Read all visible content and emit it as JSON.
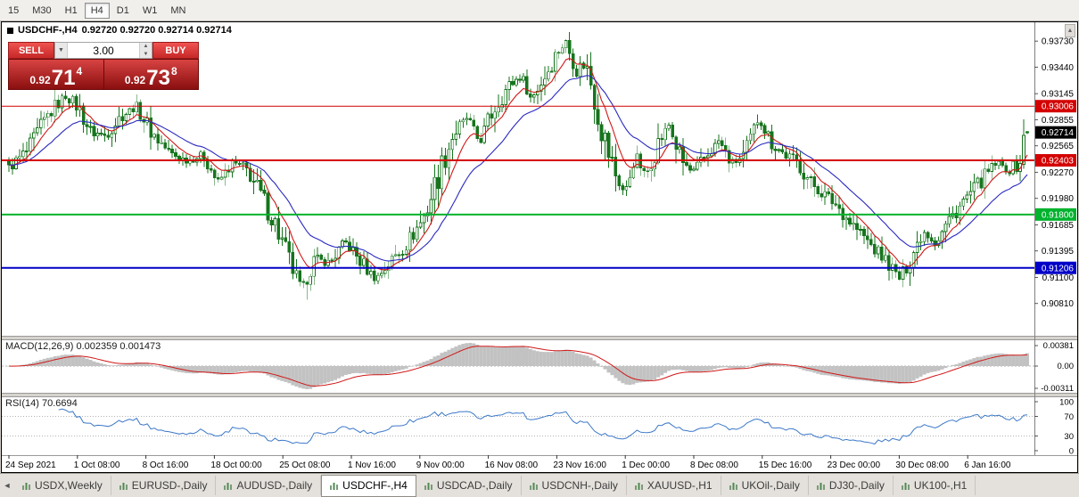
{
  "toolbar": {
    "timeframes": [
      "15",
      "M30",
      "H1",
      "H4",
      "D1",
      "W1",
      "MN"
    ],
    "active": "H4"
  },
  "chart_header": {
    "symbol": "USDCHF-,H4",
    "ohlc_text": "0.92720 0.92720 0.92714 0.92714"
  },
  "trade_panel": {
    "sell_label": "SELL",
    "buy_label": "BUY",
    "volume": "3.00",
    "dropdown_glyph": "▼",
    "spinner_up_glyph": "▲",
    "spinner_down_glyph": "▼",
    "sell_price": {
      "prefix": "0.92",
      "big": "71",
      "sup": "4"
    },
    "buy_price": {
      "prefix": "0.92",
      "big": "73",
      "sup": "8"
    }
  },
  "window": {
    "scroll_up_glyph": "▲"
  },
  "y_axis_labels": [
    "0.93730",
    "0.93440",
    "0.93145",
    "0.92855",
    "0.92565",
    "0.92270",
    "0.91980",
    "0.91685",
    "0.91395",
    "0.91100",
    "0.90810"
  ],
  "x_axis_labels": [
    "24 Sep 2021",
    "1 Oct 08:00",
    "8 Oct 16:00",
    "18 Oct 00:00",
    "25 Oct 08:00",
    "1 Nov 16:00",
    "9 Nov 00:00",
    "16 Nov 08:00",
    "23 Nov 16:00",
    "1 Dec 00:00",
    "8 Dec 08:00",
    "15 Dec 16:00",
    "23 Dec 00:00",
    "30 Dec 08:00",
    "6 Jan 16:00"
  ],
  "macd_panel": {
    "label": "MACD(12,26,9) 0.002359 0.001473",
    "axis_labels": [
      "0.00381",
      "0.00",
      "-0.00311"
    ]
  },
  "rsi_panel": {
    "label": "RSI(14) 70.6694",
    "axis_labels": [
      "100",
      "70",
      "30",
      "0"
    ],
    "guide_levels": [
      70,
      30
    ]
  },
  "tabs": {
    "scroll_left": "◄",
    "items": [
      "USDX,Weekly",
      "EURUSD-,Daily",
      "AUDUSD-,Daily",
      "USDCHF-,H4",
      "USDCAD-,Daily",
      "USDCNH-,Daily",
      "XAUUSD-,H1",
      "UKOil-,Daily",
      "DJ30-,Daily",
      "UK100-,H1"
    ],
    "active_index": 3
  },
  "chart_data": {
    "type": "candlestick",
    "symbol": "USDCHF-",
    "timeframe": "H4",
    "title": "USDCHF-,H4",
    "current_bar": {
      "open": 0.9272,
      "high": 0.9272,
      "low": 0.92714,
      "close": 0.92714
    },
    "current_price_tag": {
      "label": "0.92714",
      "value": 0.92714,
      "color": "#000000"
    },
    "levels": [
      {
        "value": 0.93006,
        "label": "0.93006",
        "color": "#d40000",
        "width": 1
      },
      {
        "value": 0.92403,
        "label": "0.92403",
        "color": "#d40000",
        "width": 2
      },
      {
        "value": 0.918,
        "label": "0.91800",
        "color": "#00b22d",
        "width": 2
      },
      {
        "value": 0.91206,
        "label": "0.91206",
        "color": "#0000c8",
        "width": 2
      }
    ],
    "y_range": {
      "max": 0.9394,
      "min": 0.9045
    },
    "visible_high": 0.9375,
    "visible_low": 0.9085,
    "num_candles": 288,
    "price_anchors": [
      [
        0.0,
        0.9232
      ],
      [
        0.018,
        0.925
      ],
      [
        0.04,
        0.9293
      ],
      [
        0.055,
        0.9312
      ],
      [
        0.068,
        0.93
      ],
      [
        0.08,
        0.9272
      ],
      [
        0.095,
        0.9268
      ],
      [
        0.11,
        0.929
      ],
      [
        0.125,
        0.93
      ],
      [
        0.14,
        0.9272
      ],
      [
        0.158,
        0.9248
      ],
      [
        0.175,
        0.924
      ],
      [
        0.192,
        0.9246
      ],
      [
        0.205,
        0.9215
      ],
      [
        0.22,
        0.9238
      ],
      [
        0.235,
        0.9228
      ],
      [
        0.25,
        0.9196
      ],
      [
        0.262,
        0.9168
      ],
      [
        0.275,
        0.9128
      ],
      [
        0.288,
        0.9096
      ],
      [
        0.3,
        0.913
      ],
      [
        0.315,
        0.9126
      ],
      [
        0.33,
        0.915
      ],
      [
        0.345,
        0.9128
      ],
      [
        0.36,
        0.9108
      ],
      [
        0.375,
        0.9128
      ],
      [
        0.392,
        0.915
      ],
      [
        0.408,
        0.9178
      ],
      [
        0.422,
        0.9225
      ],
      [
        0.436,
        0.9268
      ],
      [
        0.45,
        0.9288
      ],
      [
        0.462,
        0.926
      ],
      [
        0.475,
        0.9295
      ],
      [
        0.49,
        0.9322
      ],
      [
        0.503,
        0.9335
      ],
      [
        0.513,
        0.9308
      ],
      [
        0.525,
        0.9332
      ],
      [
        0.538,
        0.936
      ],
      [
        0.547,
        0.9371
      ],
      [
        0.557,
        0.934
      ],
      [
        0.566,
        0.935
      ],
      [
        0.576,
        0.9308
      ],
      [
        0.586,
        0.9258
      ],
      [
        0.596,
        0.9224
      ],
      [
        0.605,
        0.9202
      ],
      [
        0.615,
        0.9246
      ],
      [
        0.625,
        0.9222
      ],
      [
        0.636,
        0.9256
      ],
      [
        0.648,
        0.928
      ],
      [
        0.66,
        0.924
      ],
      [
        0.671,
        0.9226
      ],
      [
        0.684,
        0.9244
      ],
      [
        0.697,
        0.9262
      ],
      [
        0.71,
        0.9236
      ],
      [
        0.723,
        0.9246
      ],
      [
        0.736,
        0.9288
      ],
      [
        0.748,
        0.9262
      ],
      [
        0.76,
        0.9248
      ],
      [
        0.774,
        0.9238
      ],
      [
        0.787,
        0.9216
      ],
      [
        0.8,
        0.9203
      ],
      [
        0.813,
        0.919
      ],
      [
        0.826,
        0.9172
      ],
      [
        0.839,
        0.9156
      ],
      [
        0.851,
        0.914
      ],
      [
        0.863,
        0.9127
      ],
      [
        0.875,
        0.9108
      ],
      [
        0.887,
        0.9136
      ],
      [
        0.898,
        0.9162
      ],
      [
        0.91,
        0.9148
      ],
      [
        0.922,
        0.9172
      ],
      [
        0.934,
        0.919
      ],
      [
        0.946,
        0.9206
      ],
      [
        0.958,
        0.9222
      ],
      [
        0.97,
        0.9238
      ],
      [
        0.982,
        0.9228
      ],
      [
        0.993,
        0.924
      ],
      [
        1.0,
        0.9268
      ]
    ],
    "moving_averages": [
      {
        "period": 8,
        "color": "#d01818"
      },
      {
        "period": 21,
        "color": "#2a2ac0"
      }
    ],
    "macd": {
      "fast": 12,
      "slow": 26,
      "signal": 9,
      "hist_color": "#c2c2c2",
      "signal_color": "#d01818",
      "axis_max": 0.00381,
      "axis_min": -0.00311,
      "value": 0.002359,
      "signal_value": 0.001473
    },
    "rsi": {
      "period": 14,
      "value": 70.6694,
      "color": "#3c78c8"
    },
    "candle_colors": {
      "up_fill": "#ffffff",
      "down_fill": "#17741e",
      "outline": "#17741e"
    }
  }
}
